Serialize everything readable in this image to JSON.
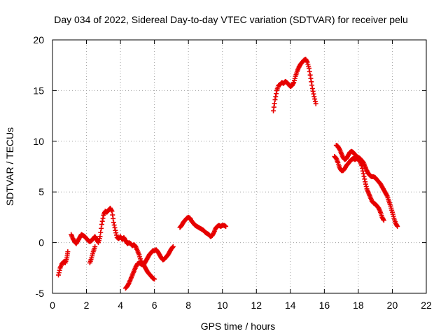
{
  "chart_data": {
    "type": "scatter",
    "title": "Day 034 of 2022, Sidereal Day-to-day VTEC variation (SDTVAR) for receiver pelu",
    "xlabel": "GPS time / hours",
    "ylabel": "SDTVAR / TECUs",
    "xlim": [
      0,
      22
    ],
    "ylim": [
      -5,
      20
    ],
    "xticks": [
      "0",
      "2",
      "4",
      "6",
      "8",
      "10",
      "12",
      "14",
      "16",
      "18",
      "20",
      "22"
    ],
    "yticks": [
      "-5",
      "0",
      "5",
      "10",
      "15",
      "20"
    ],
    "grid": true,
    "marker": "plus",
    "color": "#e60000",
    "series": [
      {
        "name": "seg-a",
        "points": [
          [
            0.35,
            -3.2
          ],
          [
            0.45,
            -2.5
          ],
          [
            0.55,
            -2.1
          ],
          [
            0.65,
            -1.9
          ],
          [
            0.75,
            -2.0
          ],
          [
            0.85,
            -1.5
          ],
          [
            0.9,
            -0.9
          ]
        ]
      },
      {
        "name": "seg-b",
        "points": [
          [
            1.1,
            0.8
          ],
          [
            1.2,
            0.4
          ],
          [
            1.3,
            0.1
          ],
          [
            1.4,
            -0.1
          ],
          [
            1.5,
            0.2
          ],
          [
            1.6,
            0.5
          ],
          [
            1.7,
            0.8
          ],
          [
            1.8,
            0.7
          ],
          [
            1.9,
            0.6
          ],
          [
            2.0,
            0.4
          ],
          [
            2.1,
            0.2
          ],
          [
            2.2,
            0.1
          ],
          [
            2.3,
            0.2
          ],
          [
            2.4,
            0.4
          ],
          [
            2.5,
            0.6
          ],
          [
            2.6,
            0.3
          ],
          [
            2.7,
            0.0
          ],
          [
            2.8,
            0.6
          ],
          [
            2.9,
            1.8
          ],
          [
            3.0,
            2.7
          ],
          [
            3.1,
            3.1
          ],
          [
            3.2,
            3.0
          ],
          [
            3.3,
            3.2
          ],
          [
            3.4,
            3.4
          ],
          [
            3.5,
            3.1
          ],
          [
            3.6,
            2.0
          ],
          [
            3.7,
            1.2
          ],
          [
            3.8,
            0.5
          ],
          [
            3.9,
            0.4
          ],
          [
            4.0,
            0.6
          ],
          [
            4.1,
            0.3
          ],
          [
            4.2,
            0.5
          ],
          [
            4.3,
            0.2
          ],
          [
            4.4,
            -0.1
          ],
          [
            4.5,
            0.0
          ],
          [
            4.6,
            -0.1
          ],
          [
            4.7,
            -0.3
          ],
          [
            4.8,
            -0.2
          ],
          [
            4.9,
            -0.4
          ],
          [
            5.0,
            -0.8
          ],
          [
            5.1,
            -1.2
          ],
          [
            5.2,
            -1.8
          ],
          [
            5.3,
            -2.1
          ],
          [
            5.4,
            -2.3
          ],
          [
            5.5,
            -2.6
          ],
          [
            5.6,
            -2.9
          ],
          [
            5.7,
            -3.1
          ],
          [
            5.8,
            -3.3
          ],
          [
            5.9,
            -3.5
          ],
          [
            6.0,
            -3.6
          ]
        ]
      },
      {
        "name": "seg-c",
        "points": [
          [
            2.2,
            -2.0
          ],
          [
            2.3,
            -1.5
          ],
          [
            2.4,
            -0.9
          ],
          [
            2.5,
            -0.4
          ]
        ]
      },
      {
        "name": "seg-d",
        "points": [
          [
            4.3,
            -4.5
          ],
          [
            4.4,
            -4.3
          ],
          [
            4.5,
            -4.0
          ],
          [
            4.6,
            -3.6
          ],
          [
            4.7,
            -3.2
          ],
          [
            4.8,
            -2.8
          ],
          [
            4.9,
            -2.4
          ],
          [
            5.0,
            -2.1
          ],
          [
            5.1,
            -2.0
          ],
          [
            5.2,
            -2.1
          ],
          [
            5.3,
            -2.2
          ],
          [
            5.4,
            -2.1
          ],
          [
            5.5,
            -1.8
          ],
          [
            5.6,
            -1.5
          ],
          [
            5.7,
            -1.2
          ],
          [
            5.8,
            -1.0
          ],
          [
            5.9,
            -0.8
          ],
          [
            6.0,
            -0.8
          ],
          [
            6.1,
            -0.7
          ],
          [
            6.2,
            -0.9
          ],
          [
            6.3,
            -1.2
          ],
          [
            6.4,
            -1.5
          ],
          [
            6.5,
            -1.7
          ],
          [
            6.6,
            -1.6
          ],
          [
            6.7,
            -1.4
          ],
          [
            6.8,
            -1.2
          ],
          [
            6.9,
            -0.9
          ],
          [
            7.0,
            -0.6
          ],
          [
            7.1,
            -0.4
          ]
        ]
      },
      {
        "name": "seg-e",
        "points": [
          [
            7.5,
            1.5
          ],
          [
            7.6,
            1.7
          ],
          [
            7.7,
            2.0
          ],
          [
            7.8,
            2.2
          ],
          [
            7.9,
            2.4
          ],
          [
            8.0,
            2.5
          ],
          [
            8.1,
            2.4
          ],
          [
            8.2,
            2.1
          ],
          [
            8.3,
            1.9
          ],
          [
            8.4,
            1.7
          ],
          [
            8.5,
            1.6
          ],
          [
            8.6,
            1.5
          ],
          [
            8.7,
            1.4
          ],
          [
            8.8,
            1.3
          ],
          [
            8.9,
            1.2
          ],
          [
            9.0,
            1.0
          ],
          [
            9.1,
            0.9
          ],
          [
            9.2,
            0.8
          ],
          [
            9.3,
            0.6
          ],
          [
            9.4,
            0.7
          ],
          [
            9.5,
            1.0
          ],
          [
            9.6,
            1.4
          ],
          [
            9.7,
            1.6
          ],
          [
            9.8,
            1.7
          ],
          [
            9.9,
            1.6
          ],
          [
            10.0,
            1.7
          ],
          [
            10.1,
            1.7
          ],
          [
            10.2,
            1.6
          ]
        ]
      },
      {
        "name": "seg-f",
        "points": [
          [
            13.0,
            13.0
          ],
          [
            13.1,
            14.1
          ],
          [
            13.2,
            15.0
          ],
          [
            13.3,
            15.5
          ],
          [
            13.4,
            15.6
          ],
          [
            13.5,
            15.8
          ],
          [
            13.6,
            15.7
          ],
          [
            13.7,
            15.9
          ],
          [
            13.8,
            15.8
          ],
          [
            13.9,
            15.6
          ],
          [
            14.0,
            15.4
          ],
          [
            14.1,
            15.5
          ],
          [
            14.2,
            15.8
          ],
          [
            14.3,
            16.4
          ],
          [
            14.4,
            16.9
          ],
          [
            14.5,
            17.3
          ],
          [
            14.6,
            17.6
          ],
          [
            14.7,
            17.8
          ],
          [
            14.8,
            18.0
          ],
          [
            14.9,
            18.1
          ],
          [
            15.0,
            17.8
          ],
          [
            15.1,
            17.2
          ],
          [
            15.2,
            16.2
          ],
          [
            15.3,
            15.2
          ],
          [
            15.4,
            14.4
          ],
          [
            15.5,
            13.7
          ]
        ]
      },
      {
        "name": "seg-g",
        "points": [
          [
            16.6,
            8.5
          ],
          [
            16.7,
            8.3
          ],
          [
            16.8,
            7.9
          ],
          [
            16.9,
            7.4
          ],
          [
            17.0,
            7.1
          ],
          [
            17.1,
            7.1
          ],
          [
            17.2,
            7.3
          ],
          [
            17.3,
            7.6
          ],
          [
            17.4,
            7.8
          ],
          [
            17.5,
            8.0
          ],
          [
            17.6,
            8.2
          ],
          [
            17.7,
            8.3
          ],
          [
            17.8,
            8.2
          ],
          [
            17.9,
            8.3
          ],
          [
            18.0,
            8.2
          ],
          [
            18.1,
            8.0
          ],
          [
            18.2,
            7.6
          ],
          [
            18.3,
            6.8
          ],
          [
            18.4,
            6.0
          ],
          [
            18.5,
            5.3
          ],
          [
            18.6,
            4.9
          ],
          [
            18.7,
            4.5
          ],
          [
            18.8,
            4.1
          ],
          [
            18.9,
            3.9
          ],
          [
            19.0,
            3.8
          ],
          [
            19.1,
            3.6
          ],
          [
            19.2,
            3.4
          ],
          [
            19.3,
            3.0
          ],
          [
            19.4,
            2.5
          ],
          [
            19.5,
            2.2
          ]
        ]
      },
      {
        "name": "seg-h",
        "points": [
          [
            16.7,
            9.6
          ],
          [
            16.8,
            9.5
          ],
          [
            16.9,
            9.2
          ],
          [
            17.0,
            8.8
          ],
          [
            17.1,
            8.4
          ],
          [
            17.2,
            8.2
          ],
          [
            17.3,
            8.3
          ],
          [
            17.4,
            8.6
          ],
          [
            17.5,
            8.9
          ],
          [
            17.6,
            9.0
          ],
          [
            17.7,
            8.9
          ],
          [
            17.8,
            8.7
          ],
          [
            17.9,
            8.5
          ],
          [
            18.0,
            8.4
          ],
          [
            18.1,
            8.3
          ],
          [
            18.2,
            8.1
          ],
          [
            18.3,
            7.9
          ],
          [
            18.4,
            7.5
          ],
          [
            18.5,
            7.1
          ],
          [
            18.6,
            6.8
          ],
          [
            18.7,
            6.6
          ],
          [
            18.8,
            6.5
          ],
          [
            18.9,
            6.5
          ],
          [
            19.0,
            6.4
          ],
          [
            19.1,
            6.2
          ],
          [
            19.2,
            6.0
          ],
          [
            19.3,
            5.8
          ],
          [
            19.4,
            5.5
          ],
          [
            19.5,
            5.2
          ],
          [
            19.6,
            4.9
          ],
          [
            19.7,
            4.6
          ],
          [
            19.8,
            4.1
          ],
          [
            19.9,
            3.6
          ],
          [
            20.0,
            3.0
          ],
          [
            20.1,
            2.4
          ],
          [
            20.2,
            1.9
          ],
          [
            20.3,
            1.6
          ]
        ]
      }
    ]
  }
}
